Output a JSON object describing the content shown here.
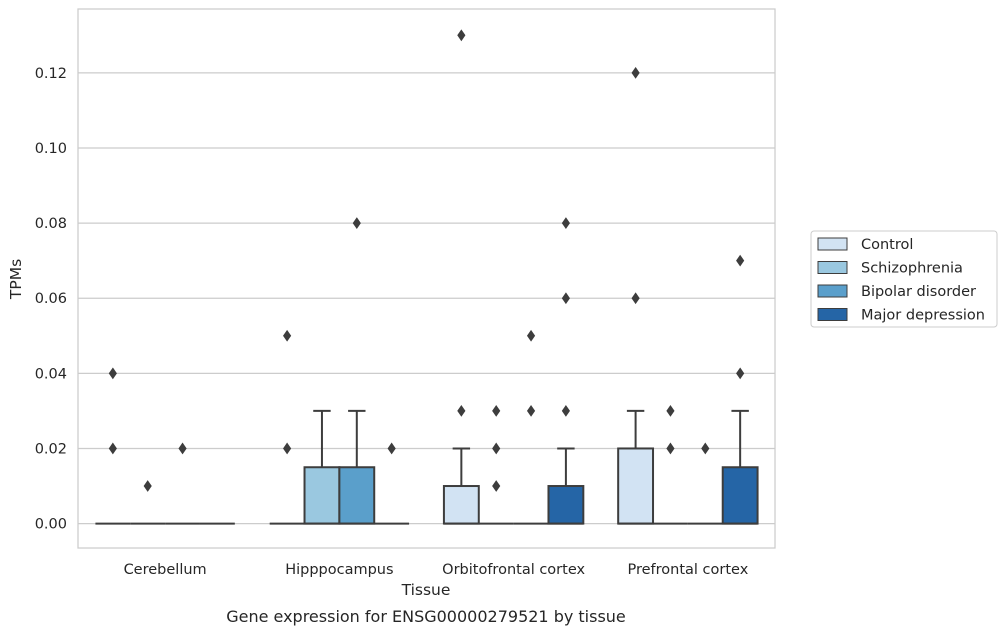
{
  "caption": "Gene expression for ENSG00000279521 by tissue",
  "colors": {
    "Control": "#d2e3f3",
    "Schizophrenia": "#9ac8e0",
    "Bipolar disorder": "#5a9fcb",
    "Major depression": "#2565a6",
    "edge": "#3d3d3d",
    "grid": "#cccccc"
  },
  "chart_data": {
    "type": "box",
    "xlabel": "Tissue",
    "ylabel": "TPMs",
    "ylim": [
      -0.0065,
      0.137
    ],
    "yticks": [
      0.0,
      0.02,
      0.04,
      0.06,
      0.08,
      0.1,
      0.12
    ],
    "ytick_labels": [
      "0.00",
      "0.02",
      "0.04",
      "0.06",
      "0.08",
      "0.10",
      "0.12"
    ],
    "grid": "horizontal",
    "legend_position": "right",
    "categories": [
      "Cerebellum",
      "Hipppocampus",
      "Orbitofrontal cortex",
      "Prefrontal cortex"
    ],
    "series": [
      {
        "name": "Control",
        "boxes": [
          {
            "q1": 0,
            "median": 0,
            "q3": 0,
            "whisker_low": 0,
            "whisker_high": 0,
            "outliers": [
              0.02,
              0.04
            ]
          },
          {
            "q1": 0,
            "median": 0,
            "q3": 0,
            "whisker_low": 0,
            "whisker_high": 0,
            "outliers": [
              0.02,
              0.05
            ]
          },
          {
            "q1": 0,
            "median": 0,
            "q3": 0.01,
            "whisker_low": 0,
            "whisker_high": 0.02,
            "outliers": [
              0.03,
              0.13
            ]
          },
          {
            "q1": 0,
            "median": 0,
            "q3": 0.02,
            "whisker_low": 0,
            "whisker_high": 0.03,
            "outliers": [
              0.06,
              0.12
            ]
          }
        ]
      },
      {
        "name": "Schizophrenia",
        "boxes": [
          {
            "q1": 0,
            "median": 0,
            "q3": 0,
            "whisker_low": 0,
            "whisker_high": 0,
            "outliers": [
              0.01
            ]
          },
          {
            "q1": 0,
            "median": 0,
            "q3": 0.015,
            "whisker_low": 0,
            "whisker_high": 0.03,
            "outliers": []
          },
          {
            "q1": 0,
            "median": 0,
            "q3": 0,
            "whisker_low": 0,
            "whisker_high": 0,
            "outliers": [
              0.01,
              0.02,
              0.03
            ]
          },
          {
            "q1": 0,
            "median": 0,
            "q3": 0,
            "whisker_low": 0,
            "whisker_high": 0,
            "outliers": [
              0.02,
              0.03
            ]
          }
        ]
      },
      {
        "name": "Bipolar disorder",
        "boxes": [
          {
            "q1": 0,
            "median": 0,
            "q3": 0,
            "whisker_low": 0,
            "whisker_high": 0,
            "outliers": [
              0.02
            ]
          },
          {
            "q1": 0,
            "median": 0,
            "q3": 0.015,
            "whisker_low": 0,
            "whisker_high": 0.03,
            "outliers": [
              0.08
            ]
          },
          {
            "q1": 0,
            "median": 0,
            "q3": 0,
            "whisker_low": 0,
            "whisker_high": 0,
            "outliers": [
              0.03,
              0.05
            ]
          },
          {
            "q1": 0,
            "median": 0,
            "q3": 0,
            "whisker_low": 0,
            "whisker_high": 0,
            "outliers": [
              0.02
            ]
          }
        ]
      },
      {
        "name": "Major depression",
        "boxes": [
          {
            "q1": 0,
            "median": 0,
            "q3": 0,
            "whisker_low": 0,
            "whisker_high": 0,
            "outliers": []
          },
          {
            "q1": 0,
            "median": 0,
            "q3": 0,
            "whisker_low": 0,
            "whisker_high": 0,
            "outliers": [
              0.02
            ]
          },
          {
            "q1": 0,
            "median": 0,
            "q3": 0.01,
            "whisker_low": 0,
            "whisker_high": 0.02,
            "outliers": [
              0.03,
              0.06,
              0.08
            ]
          },
          {
            "q1": 0,
            "median": 0,
            "q3": 0.015,
            "whisker_low": 0,
            "whisker_high": 0.03,
            "outliers": [
              0.04,
              0.07
            ]
          }
        ]
      }
    ]
  }
}
